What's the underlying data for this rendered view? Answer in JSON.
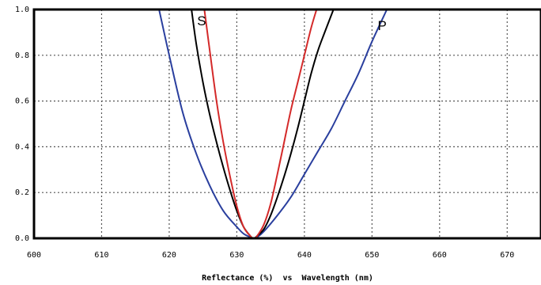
{
  "chart_data": {
    "type": "line",
    "title": "",
    "xlabel": "Reflectance (%)  vs  Wavelength (nm)",
    "ylabel": "",
    "xlim": [
      600,
      675
    ],
    "ylim": [
      0.0,
      1.0
    ],
    "x_ticks": [
      600,
      610,
      620,
      630,
      640,
      650,
      660,
      670
    ],
    "x_tick_labels": [
      "600",
      "610",
      "620",
      "630",
      "640",
      "650",
      "660",
      "670"
    ],
    "y_ticks": [
      0.0,
      0.2,
      0.4,
      0.6,
      0.8,
      1.0
    ],
    "y_tick_labels": [
      "0.0",
      "0.2",
      "0.4",
      "0.6",
      "0.8",
      "1.0"
    ],
    "grid": true,
    "annotations": [
      {
        "text": "S",
        "x": 624.8,
        "y": 0.93
      },
      {
        "text": "P",
        "x": 651.5,
        "y": 0.91
      }
    ],
    "series": [
      {
        "color": "#2a3f9e",
        "x": [
          618.5,
          620,
          622,
          624,
          626,
          628,
          630,
          631,
          632,
          632.5,
          633,
          634,
          636,
          638,
          640,
          642,
          644,
          646,
          648,
          650,
          652.2
        ],
        "y": [
          1.0,
          0.8,
          0.55,
          0.37,
          0.23,
          0.12,
          0.05,
          0.02,
          0.005,
          0.0,
          0.005,
          0.03,
          0.1,
          0.18,
          0.28,
          0.38,
          0.48,
          0.6,
          0.72,
          0.86,
          1.0
        ]
      },
      {
        "color": "#000000",
        "x": [
          623.3,
          624,
          625,
          626,
          627,
          628,
          629,
          630,
          631,
          632,
          632.5,
          633,
          634,
          635,
          636,
          637,
          638,
          639,
          640,
          641,
          642,
          643,
          644.3
        ],
        "y": [
          1.0,
          0.85,
          0.68,
          0.54,
          0.42,
          0.31,
          0.21,
          0.12,
          0.05,
          0.01,
          0.0,
          0.01,
          0.04,
          0.1,
          0.18,
          0.27,
          0.37,
          0.48,
          0.6,
          0.72,
          0.82,
          0.9,
          1.0
        ]
      },
      {
        "color": "#d42a2a",
        "x": [
          625.2,
          626,
          627,
          628,
          629,
          630,
          631,
          632,
          632.5,
          633,
          634,
          635,
          636,
          637,
          638,
          639,
          640,
          641,
          641.8
        ],
        "y": [
          1.0,
          0.82,
          0.6,
          0.42,
          0.27,
          0.14,
          0.05,
          0.01,
          0.0,
          0.01,
          0.06,
          0.15,
          0.28,
          0.42,
          0.56,
          0.68,
          0.8,
          0.92,
          1.0
        ]
      }
    ]
  }
}
